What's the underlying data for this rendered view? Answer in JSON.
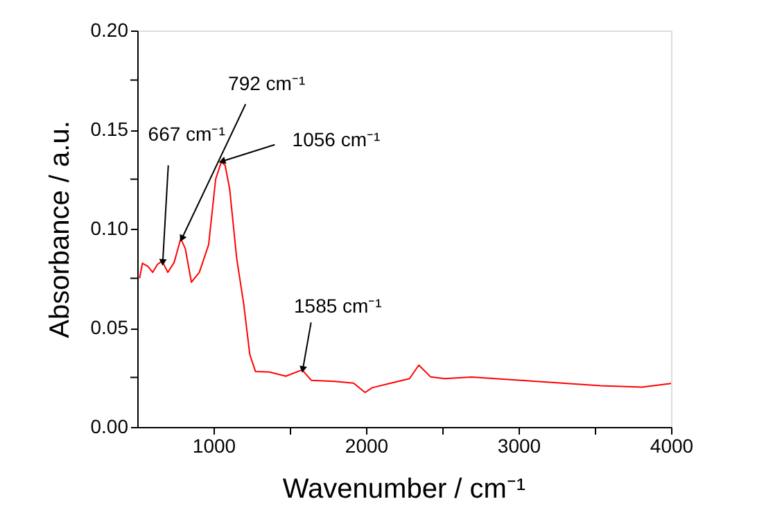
{
  "chart_data": {
    "type": "line",
    "xlabel": "Wavenumber / cm⁻¹",
    "ylabel": "Absorbance / a.u.",
    "x": [
      515,
      534,
      570,
      601,
      632,
      663,
      700,
      742,
      785,
      815,
      855,
      907,
      968,
      1014,
      1051,
      1076,
      1106,
      1152,
      1198,
      1238,
      1275,
      1367,
      1474,
      1581,
      1642,
      1795,
      1918,
      1994,
      2040,
      2163,
      2285,
      2346,
      2423,
      2515,
      2692,
      2964,
      3236,
      3538,
      3810,
      4000
    ],
    "series": [
      {
        "color": "#ff0000",
        "values": [
          0.075,
          0.0826,
          0.081,
          0.078,
          0.082,
          0.0837,
          0.078,
          0.083,
          0.095,
          0.09,
          0.073,
          0.078,
          0.092,
          0.125,
          0.1337,
          0.132,
          0.12,
          0.085,
          0.062,
          0.0365,
          0.028,
          0.0277,
          0.0256,
          0.0288,
          0.0235,
          0.023,
          0.0221,
          0.0174,
          0.0198,
          0.0221,
          0.0244,
          0.0312,
          0.0253,
          0.0244,
          0.0252,
          0.0238,
          0.0224,
          0.0208,
          0.0201,
          0.0219
        ]
      }
    ],
    "xlim": [
      500,
      4000
    ],
    "ylim": [
      0,
      0.2
    ],
    "xticks": [
      1000,
      {
        "value": 1500,
        "label": null
      },
      2000,
      {
        "value": 2500,
        "label": null
      },
      3000,
      {
        "value": 3500,
        "label": null
      },
      4000
    ],
    "yticks": [
      {
        "value": 0,
        "label": "0.00"
      },
      {
        "value": 0.025,
        "label": null
      },
      {
        "value": 0.05,
        "label": "0.05"
      },
      {
        "value": 0.075,
        "label": null
      },
      {
        "value": 0.1,
        "label": "0.10"
      },
      {
        "value": 0.125,
        "label": null
      },
      {
        "value": 0.15,
        "label": "0.15"
      },
      {
        "value": 0.175,
        "label": null
      },
      {
        "value": 0.2,
        "label": "0.20"
      }
    ],
    "grid": false,
    "legend": false,
    "marker": "none",
    "line_style": "solid",
    "annotations": [
      {
        "text": "667 cm⁻¹",
        "x": 667,
        "y": 0.083
      },
      {
        "text": "792 cm⁻¹",
        "x": 792,
        "y": 0.095
      },
      {
        "text": "1056 cm⁻¹",
        "x": 1056,
        "y": 0.134
      },
      {
        "text": "1585 cm⁻¹",
        "x": 1585,
        "y": 0.029
      }
    ]
  }
}
